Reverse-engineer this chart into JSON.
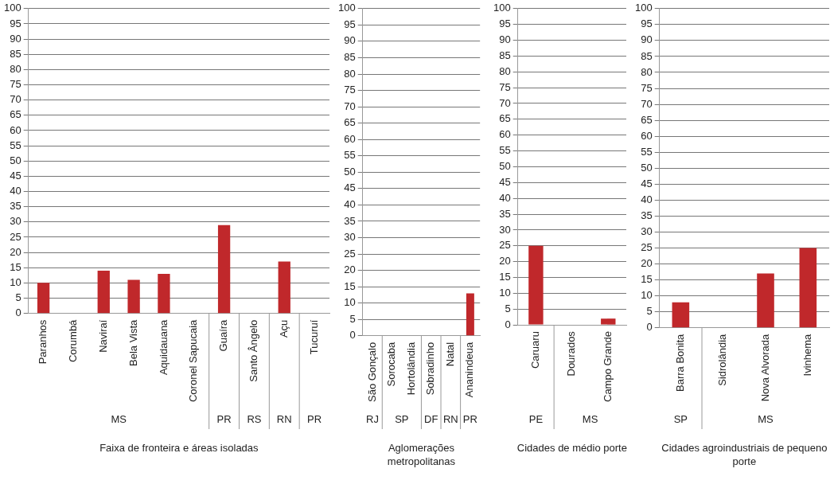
{
  "chart_data": [
    {
      "type": "bar",
      "xlabel": "Faixa de fronteira e áreas isoladas",
      "categories": [
        "Paranhos",
        "Corumbá",
        "Naviraí",
        "Bela Vista",
        "Aquidauana",
        "Coronel Sapucaia",
        "Guaíra",
        "Santo Ângelo",
        "Açu",
        "Tucuruí"
      ],
      "values": [
        10,
        0,
        14,
        11,
        13,
        0,
        29,
        0,
        17,
        0
      ],
      "color": "#c0282b",
      "ylim": [
        0,
        100
      ],
      "yticks": [
        0,
        5,
        10,
        15,
        20,
        25,
        30,
        35,
        40,
        45,
        50,
        55,
        60,
        65,
        70,
        75,
        80,
        85,
        90,
        95,
        100
      ],
      "grid": "y",
      "legend": false,
      "annotations": [
        "MS",
        "PR",
        "RS",
        "RN",
        "PR"
      ]
    },
    {
      "type": "bar",
      "xlabel": "Aglomerações metropolitanas",
      "categories": [
        "São Gonçalo",
        "Sorocaba",
        "Hortolândia",
        "Sobradinho",
        "Natal",
        "Ananindeua"
      ],
      "values": [
        0,
        0,
        0,
        0,
        0,
        13
      ],
      "color": "#c0282b",
      "ylim": [
        0,
        100
      ],
      "yticks": [
        0,
        5,
        10,
        15,
        20,
        25,
        30,
        35,
        40,
        45,
        50,
        55,
        60,
        65,
        70,
        75,
        80,
        85,
        90,
        95,
        100
      ],
      "grid": "y",
      "legend": false,
      "annotations": [
        "RJ",
        "SP",
        "DF",
        "RN",
        "PR"
      ]
    },
    {
      "type": "bar",
      "xlabel": "Cidades de médio porte",
      "categories": [
        "Caruaru",
        "Dourados",
        "Campo Grande"
      ],
      "values": [
        25,
        0,
        2
      ],
      "color": "#c0282b",
      "ylim": [
        0,
        100
      ],
      "yticks": [
        0,
        5,
        10,
        15,
        20,
        25,
        30,
        35,
        40,
        45,
        50,
        55,
        60,
        65,
        70,
        75,
        80,
        85,
        90,
        95,
        100
      ],
      "grid": "y",
      "legend": false,
      "annotations": [
        "PE",
        "MS"
      ]
    },
    {
      "type": "bar",
      "xlabel": "Cidades agroindustriais de pequeno porte",
      "categories": [
        "Barra Bonita",
        "Sidrolândia",
        "Nova Alvorada",
        "Ivinhema"
      ],
      "values": [
        8,
        0,
        17,
        25
      ],
      "color": "#c0282b",
      "ylim": [
        0,
        100
      ],
      "yticks": [
        0,
        5,
        10,
        15,
        20,
        25,
        30,
        35,
        40,
        45,
        50,
        55,
        60,
        65,
        70,
        75,
        80,
        85,
        90,
        95,
        100
      ],
      "grid": "y",
      "legend": false,
      "annotations": [
        "SP",
        "MS"
      ]
    }
  ]
}
